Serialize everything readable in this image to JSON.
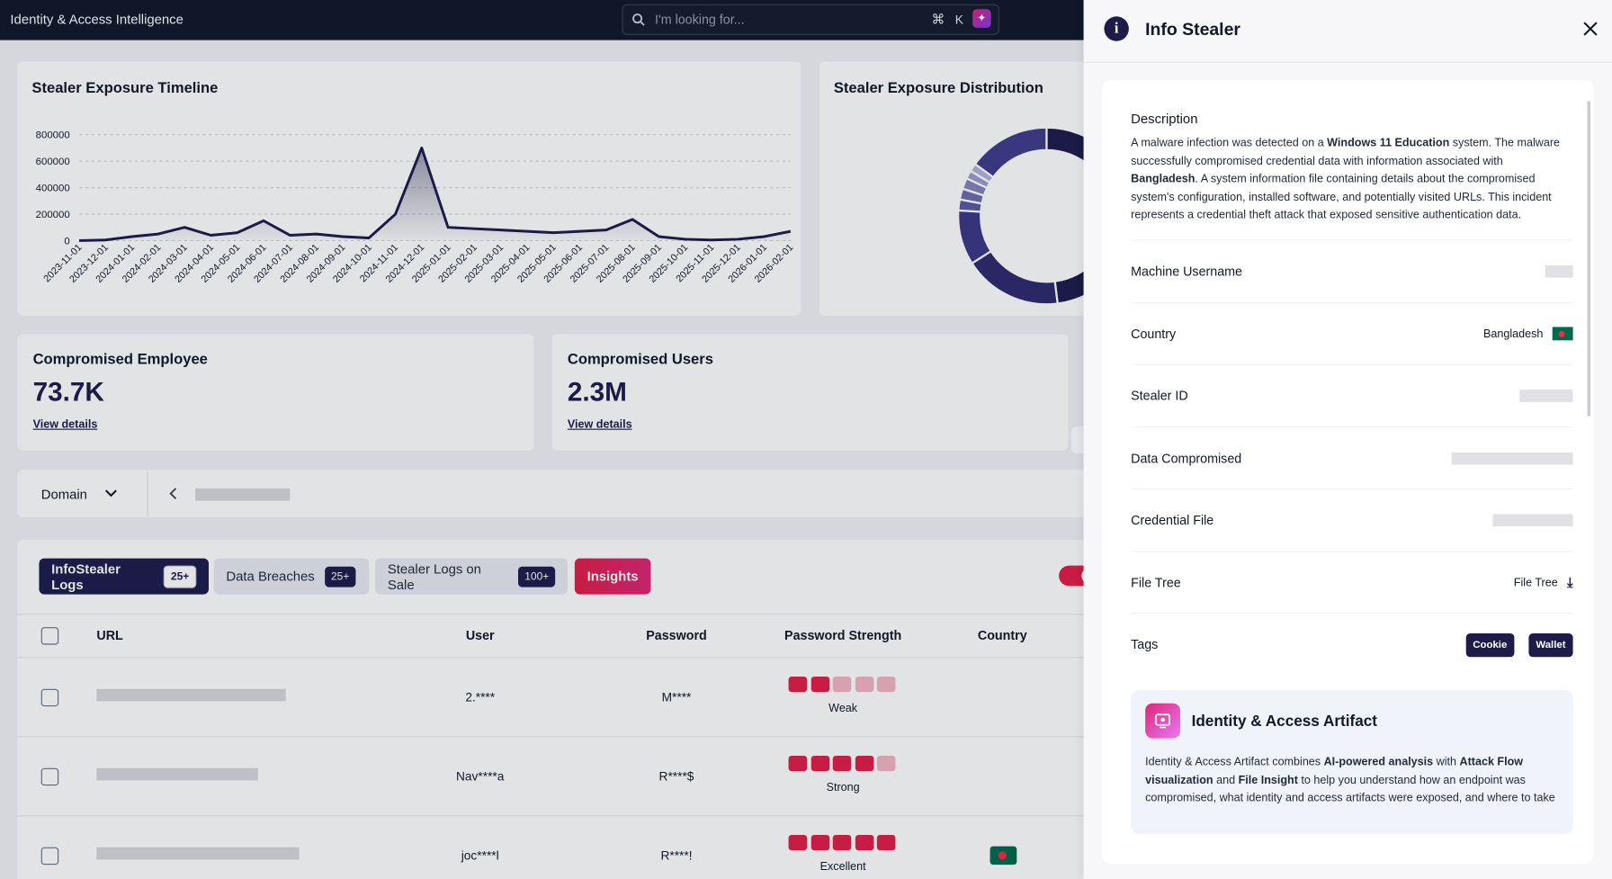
{
  "header": {
    "title": "Identity & Access Intelligence",
    "search_placeholder": "I'm looking for...",
    "shortcut_modifier": "⌘",
    "shortcut_key": "K"
  },
  "chart_data": [
    {
      "type": "line",
      "title": "Stealer Exposure Timeline",
      "categories": [
        "2023-11-01",
        "2023-12-01",
        "2024-01-01",
        "2024-02-01",
        "2024-03-01",
        "2024-04-01",
        "2024-05-01",
        "2024-06-01",
        "2024-07-01",
        "2024-08-01",
        "2024-09-01",
        "2024-10-01",
        "2024-11-01",
        "2024-12-01",
        "2025-01-01",
        "2025-02-01",
        "2025-03-01",
        "2025-04-01",
        "2025-05-01",
        "2025-06-01",
        "2025-07-01",
        "2025-08-01",
        "2025-09-01",
        "2025-10-01",
        "2025-11-01",
        "2025-12-01",
        "2026-01-01",
        "2026-02-01"
      ],
      "values": [
        0,
        5000,
        30000,
        50000,
        100000,
        40000,
        60000,
        150000,
        40000,
        50000,
        30000,
        20000,
        200000,
        700000,
        100000,
        90000,
        80000,
        70000,
        60000,
        70000,
        80000,
        160000,
        30000,
        10000,
        5000,
        10000,
        30000,
        70000
      ],
      "color": "#1e1b4b",
      "ylim": [
        0,
        800000
      ],
      "yticks": [
        0,
        200000,
        400000,
        600000,
        800000
      ],
      "grid": true
    },
    {
      "type": "donut",
      "title": "Stealer Exposure Distribution",
      "values": [
        48,
        18,
        10,
        2,
        2,
        2,
        1.5,
        1.5,
        15
      ],
      "colors": [
        "#1e1b4b",
        "#2e2a6e",
        "#3b3887",
        "#5a58a0",
        "#6e6cae",
        "#8583bd",
        "#9c9bcc",
        "#b3b2d8",
        "#3f3d8a"
      ]
    }
  ],
  "kpis": [
    {
      "label": "Compromised Employee",
      "value": "73.7K",
      "link": "View details"
    },
    {
      "label": "Compromised Users",
      "value": "2.3M",
      "link": "View details"
    }
  ],
  "filter": {
    "label": "Domain"
  },
  "tabs": [
    {
      "label": "InfoStealer Logs",
      "badge": "25+",
      "active": true
    },
    {
      "label": "Data Breaches",
      "badge": "25+"
    },
    {
      "label": "Stealer Logs on Sale",
      "badge": "100+"
    },
    {
      "label": "Insights"
    }
  ],
  "table": {
    "columns": [
      "URL",
      "User",
      "Password",
      "Password Strength",
      "Country"
    ],
    "rows": [
      {
        "user": "2.****",
        "password": "M****",
        "strength": 2,
        "strength_label": "Weak"
      },
      {
        "user": "Nav****a",
        "password": "R****$",
        "strength": 4,
        "strength_label": "Strong"
      },
      {
        "user": "joc****l",
        "password": "R****!",
        "strength": 5,
        "strength_label": "Excellent"
      }
    ]
  },
  "drawer": {
    "title": "Info Stealer",
    "description_label": "Description",
    "description": [
      {
        "text": "A malware infection was detected on a "
      },
      {
        "text": "Windows 11 Education",
        "bold": true
      },
      {
        "text": " system. The malware successfully compromised credential data with information associated with "
      },
      {
        "text": "Bangladesh",
        "bold": true
      },
      {
        "text": ". A system information file containing details about the compromised system's configuration, installed software, and potentially visited URLs. This incident represents a credential theft attack that exposed sensitive authentication data."
      }
    ],
    "fields": [
      {
        "label": "Machine Username"
      },
      {
        "label": "Country",
        "value": "Bangladesh"
      },
      {
        "label": "Stealer ID"
      },
      {
        "label": "Data Compromised"
      },
      {
        "label": "Credential File"
      },
      {
        "label": "File Tree",
        "value": "File Tree"
      },
      {
        "label": "Tags",
        "tags": [
          "Cookie",
          "Wallet"
        ]
      }
    ],
    "artifact": {
      "title": "Identity & Access Artifact",
      "text": [
        {
          "text": "Identity & Access Artifact combines "
        },
        {
          "text": "AI-powered analysis",
          "bold": true
        },
        {
          "text": " with "
        },
        {
          "text": "Attack Flow visualization",
          "bold": true
        },
        {
          "text": " and "
        },
        {
          "text": "File Insight",
          "bold": true
        },
        {
          "text": " to help you understand how an endpoint was compromised, what identity and access artifacts were exposed, and where to take"
        }
      ]
    }
  }
}
